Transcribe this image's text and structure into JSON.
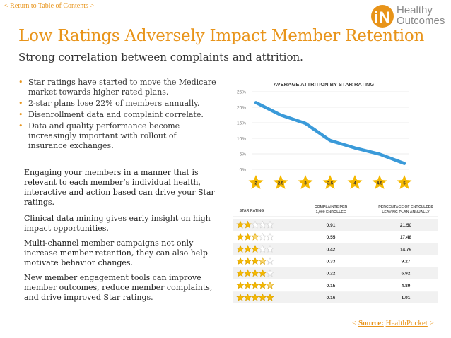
{
  "nav": {
    "toc_link": "< Return to Table of Contents >"
  },
  "logo": {
    "line1": "Healthy",
    "line2": "Outcomes",
    "icon": "iN-logo-icon"
  },
  "title": "Low Ratings Adversely Impact Member Retention",
  "subtitle": "Strong correlation between complaints and attrition.",
  "bullets": [
    "Star ratings have started to move the Medicare market towards higher rated plans.",
    "2-star plans lose 22% of members annually.",
    "Disenrollment data and complaint correlate.",
    "Data and quality performance become increasingly important with rollout of insurance exchanges."
  ],
  "paragraphs": [
    "Engaging your members in a manner that is relevant to each member’s individual health, interactive and action based can drive your Star ratings.",
    "Clinical data mining gives early insight on high impact opportunities.",
    "Multi-channel member campaigns not only increase member retention, they can also help motivate behavior changes.",
    "New member engagement tools can improve member outcomes, reduce member complaints, and drive improved Star ratings."
  ],
  "colors": {
    "accent": "#e8941a",
    "line": "#3a9ad9",
    "star": "#f5b800"
  },
  "chart_data": {
    "type": "line",
    "title": "AVERAGE ATTRITION BY STAR RATING",
    "categories": [
      "2",
      "2.5",
      "3",
      "3.5",
      "4",
      "4.5",
      "5"
    ],
    "values": [
      21.5,
      17.5,
      14.8,
      9.3,
      6.9,
      4.9,
      1.9
    ],
    "ylim": [
      0,
      25
    ],
    "yticks": [
      "0%",
      "5%",
      "10%",
      "15%",
      "20%",
      "25%"
    ],
    "ytick_values": [
      0,
      5,
      10,
      15,
      20,
      25
    ],
    "grid": true
  },
  "table": {
    "headers": [
      "STAR RATING",
      "COMPLAINTS PER 1,000 ENROLLEE",
      "PERCENTAGE OF ENROLLEES LEAVING PLAN ANNUALLY"
    ],
    "rows": [
      {
        "stars": 2,
        "complaints": "0.91",
        "pct": "21.50"
      },
      {
        "stars": 2.5,
        "complaints": "0.55",
        "pct": "17.48"
      },
      {
        "stars": 3,
        "complaints": "0.42",
        "pct": "14.79"
      },
      {
        "stars": 3.5,
        "complaints": "0.33",
        "pct": "9.27"
      },
      {
        "stars": 4,
        "complaints": "0.22",
        "pct": "6.92"
      },
      {
        "stars": 4.5,
        "complaints": "0.15",
        "pct": "4.89"
      },
      {
        "stars": 5,
        "complaints": "0.16",
        "pct": "1.91"
      }
    ]
  },
  "source": {
    "prefix": "< ",
    "label": "Source:",
    "name": "HealthPocket",
    "suffix": " >"
  }
}
